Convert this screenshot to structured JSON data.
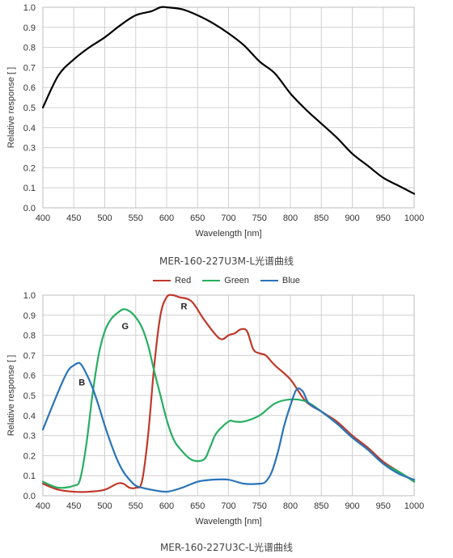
{
  "chart_data": [
    {
      "type": "line",
      "title": "",
      "caption": "MER-160-227U3M-L光谱曲线",
      "xlabel": "Wavelength [nm]",
      "ylabel": "Relative response [ ]",
      "xlim": [
        400,
        1000
      ],
      "ylim": [
        0,
        1.0
      ],
      "xticks": [
        "400",
        "450",
        "500",
        "550",
        "600",
        "650",
        "700",
        "750",
        "800",
        "850",
        "900",
        "950",
        "1000"
      ],
      "yticks": [
        "0.0",
        "0.1",
        "0.2",
        "0.3",
        "0.4",
        "0.5",
        "0.6",
        "0.7",
        "0.8",
        "0.9",
        "1.0"
      ],
      "grid": true,
      "series": [
        {
          "color": "#000000",
          "x": [
            400,
            425,
            450,
            475,
            500,
            525,
            550,
            575,
            590,
            600,
            625,
            650,
            675,
            700,
            725,
            750,
            775,
            800,
            825,
            850,
            875,
            900,
            925,
            950,
            975,
            1000
          ],
          "y": [
            0.5,
            0.66,
            0.74,
            0.8,
            0.85,
            0.91,
            0.96,
            0.98,
            1.0,
            1.0,
            0.99,
            0.96,
            0.92,
            0.87,
            0.81,
            0.73,
            0.67,
            0.57,
            0.49,
            0.42,
            0.35,
            0.27,
            0.21,
            0.15,
            0.11,
            0.07
          ]
        }
      ]
    },
    {
      "type": "line",
      "title": "",
      "caption": "MER-160-227U3C-L光谱曲线",
      "xlabel": "Wavelength [nm]",
      "ylabel": "Relative response [ ]",
      "xlim": [
        400,
        1000
      ],
      "ylim": [
        0,
        1.0
      ],
      "xticks": [
        "400",
        "450",
        "500",
        "550",
        "600",
        "650",
        "700",
        "750",
        "800",
        "850",
        "900",
        "950",
        "1000"
      ],
      "yticks": [
        "0.0",
        "0.1",
        "0.2",
        "0.3",
        "0.4",
        "0.5",
        "0.6",
        "0.7",
        "0.8",
        "0.9",
        "1.0"
      ],
      "grid": true,
      "legend_position": "top-center",
      "annotations": [
        {
          "text": "R",
          "x": 628,
          "y": 0.93
        },
        {
          "text": "G",
          "x": 533,
          "y": 0.83
        },
        {
          "text": "B",
          "x": 463,
          "y": 0.55
        }
      ],
      "series": [
        {
          "name": "Red",
          "color": "#c0392b",
          "x": [
            400,
            425,
            450,
            475,
            500,
            520,
            530,
            540,
            550,
            560,
            570,
            580,
            590,
            600,
            610,
            620,
            640,
            660,
            680,
            690,
            700,
            710,
            720,
            730,
            740,
            750,
            760,
            775,
            800,
            825,
            850,
            875,
            900,
            925,
            950,
            975,
            1000
          ],
          "y": [
            0.06,
            0.03,
            0.02,
            0.02,
            0.03,
            0.06,
            0.06,
            0.04,
            0.04,
            0.07,
            0.3,
            0.65,
            0.9,
            0.99,
            1.0,
            0.99,
            0.97,
            0.88,
            0.8,
            0.78,
            0.8,
            0.81,
            0.83,
            0.82,
            0.73,
            0.71,
            0.7,
            0.65,
            0.58,
            0.47,
            0.42,
            0.37,
            0.3,
            0.24,
            0.17,
            0.12,
            0.07
          ]
        },
        {
          "name": "Green",
          "color": "#27ae60",
          "x": [
            400,
            425,
            450,
            460,
            470,
            480,
            490,
            500,
            510,
            520,
            530,
            540,
            550,
            560,
            570,
            580,
            590,
            600,
            610,
            620,
            640,
            660,
            670,
            680,
            700,
            710,
            725,
            750,
            775,
            800,
            825,
            850,
            875,
            900,
            925,
            950,
            975,
            1000
          ],
          "y": [
            0.07,
            0.04,
            0.05,
            0.08,
            0.25,
            0.5,
            0.7,
            0.82,
            0.88,
            0.91,
            0.93,
            0.92,
            0.89,
            0.84,
            0.75,
            0.62,
            0.5,
            0.38,
            0.29,
            0.24,
            0.18,
            0.18,
            0.24,
            0.31,
            0.37,
            0.37,
            0.37,
            0.4,
            0.46,
            0.48,
            0.47,
            0.42,
            0.36,
            0.29,
            0.23,
            0.16,
            0.12,
            0.07
          ]
        },
        {
          "name": "Blue",
          "color": "#2a74b8",
          "x": [
            400,
            425,
            440,
            450,
            460,
            470,
            480,
            490,
            500,
            510,
            520,
            530,
            540,
            550,
            560,
            575,
            600,
            625,
            650,
            675,
            700,
            725,
            750,
            760,
            770,
            780,
            790,
            800,
            810,
            820,
            830,
            850,
            875,
            900,
            925,
            950,
            975,
            1000
          ],
          "y": [
            0.33,
            0.52,
            0.62,
            0.65,
            0.66,
            0.61,
            0.54,
            0.45,
            0.35,
            0.26,
            0.18,
            0.12,
            0.08,
            0.05,
            0.04,
            0.03,
            0.02,
            0.04,
            0.07,
            0.08,
            0.08,
            0.06,
            0.06,
            0.07,
            0.12,
            0.22,
            0.35,
            0.45,
            0.53,
            0.52,
            0.46,
            0.42,
            0.36,
            0.29,
            0.23,
            0.16,
            0.11,
            0.08
          ]
        }
      ]
    }
  ]
}
